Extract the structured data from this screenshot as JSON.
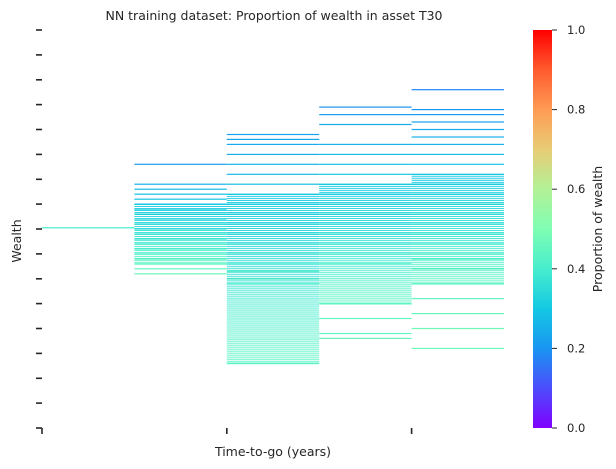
{
  "chart_data": {
    "type": "heatmap",
    "title": "NN training dataset: Proportion of wealth in asset T30",
    "xlabel": "Time-to-go (years)",
    "ylabel": "Wealth",
    "colorbar": {
      "label": "Proportion of wealth",
      "range": [
        0.0,
        1.0
      ],
      "ticks": [
        "0.0",
        "0.2",
        "0.4",
        "0.6",
        "0.8",
        "1.0"
      ],
      "colormap": "rainbow"
    },
    "x_tick_count": 3,
    "y_tick_count": 16,
    "grid": false,
    "columns": [
      {
        "bands": [
          {
            "y": 8.05,
            "v": 0.4
          }
        ]
      },
      {
        "bands": [
          {
            "y": 10.6,
            "v": 0.22
          },
          {
            "y": 9.8,
            "v": 0.25
          },
          {
            "y": 9.6,
            "v": 0.27
          },
          {
            "y": 9.4,
            "v": 0.28
          },
          {
            "y": 9.2,
            "v": 0.29
          },
          {
            "y": 9.0,
            "v": 0.3
          },
          {
            "y": 8.8,
            "v": 0.31
          },
          {
            "y": 8.6,
            "v": 0.32
          },
          {
            "y": 8.4,
            "v": 0.33
          },
          {
            "y": 8.2,
            "v": 0.34
          },
          {
            "y": 8.0,
            "v": 0.35
          },
          {
            "y": 7.8,
            "v": 0.36
          },
          {
            "y": 7.6,
            "v": 0.37
          },
          {
            "y": 7.4,
            "v": 0.38
          },
          {
            "y": 7.2,
            "v": 0.4
          },
          {
            "y": 7.0,
            "v": 0.42
          },
          {
            "y": 6.8,
            "v": 0.43
          },
          {
            "y": 6.6,
            "v": 0.44
          },
          {
            "y": 6.4,
            "v": 0.45
          },
          {
            "y": 6.2,
            "v": 0.46
          }
        ]
      },
      {
        "bands": [
          {
            "y": 11.8,
            "v": 0.22
          },
          {
            "y": 11.6,
            "v": 0.23
          },
          {
            "y": 11.4,
            "v": 0.24
          },
          {
            "y": 11.0,
            "v": 0.25
          },
          {
            "y": 10.6,
            "v": 0.26
          },
          {
            "y": 10.2,
            "v": 0.27
          },
          {
            "y": 9.8,
            "v": 0.28
          },
          {
            "y": 9.4,
            "v": 0.3
          },
          {
            "y": 9.0,
            "v": 0.31
          },
          {
            "y": 8.6,
            "v": 0.32
          },
          {
            "y": 8.2,
            "v": 0.34
          },
          {
            "y": 7.8,
            "v": 0.36
          },
          {
            "y": 7.4,
            "v": 0.38
          },
          {
            "y": 7.0,
            "v": 0.4
          },
          {
            "y": 6.6,
            "v": 0.42
          },
          {
            "y": 6.3,
            "v": 0.43
          },
          {
            "y": 6.0,
            "v": 0.44
          },
          {
            "y": 5.8,
            "v": 0.45
          },
          {
            "y": 2.6,
            "v": 0.42
          }
        ]
      },
      {
        "bands": [
          {
            "y": 12.9,
            "v": 0.2
          },
          {
            "y": 12.6,
            "v": 0.22
          },
          {
            "y": 12.2,
            "v": 0.24
          },
          {
            "y": 11.4,
            "v": 0.26
          },
          {
            "y": 11.0,
            "v": 0.27
          },
          {
            "y": 10.6,
            "v": 0.28
          },
          {
            "y": 10.2,
            "v": 0.29
          },
          {
            "y": 9.8,
            "v": 0.3
          },
          {
            "y": 9.4,
            "v": 0.32
          },
          {
            "y": 9.0,
            "v": 0.33
          },
          {
            "y": 8.6,
            "v": 0.34
          },
          {
            "y": 8.2,
            "v": 0.36
          },
          {
            "y": 7.8,
            "v": 0.38
          },
          {
            "y": 7.4,
            "v": 0.4
          },
          {
            "y": 7.0,
            "v": 0.42
          },
          {
            "y": 6.6,
            "v": 0.43
          },
          {
            "y": 5.0,
            "v": 0.44
          },
          {
            "y": 4.4,
            "v": 0.45
          },
          {
            "y": 3.8,
            "v": 0.45
          },
          {
            "y": 3.6,
            "v": 0.46
          }
        ]
      },
      {
        "bands": [
          {
            "y": 13.6,
            "v": 0.18
          },
          {
            "y": 12.8,
            "v": 0.2
          },
          {
            "y": 12.6,
            "v": 0.21
          },
          {
            "y": 12.3,
            "v": 0.23
          },
          {
            "y": 12.0,
            "v": 0.24
          },
          {
            "y": 11.7,
            "v": 0.25
          },
          {
            "y": 11.4,
            "v": 0.26
          },
          {
            "y": 11.0,
            "v": 0.27
          },
          {
            "y": 10.6,
            "v": 0.29
          },
          {
            "y": 10.2,
            "v": 0.3
          },
          {
            "y": 9.8,
            "v": 0.31
          },
          {
            "y": 9.4,
            "v": 0.33
          },
          {
            "y": 9.0,
            "v": 0.34
          },
          {
            "y": 8.6,
            "v": 0.35
          },
          {
            "y": 8.2,
            "v": 0.37
          },
          {
            "y": 7.8,
            "v": 0.38
          },
          {
            "y": 7.4,
            "v": 0.4
          },
          {
            "y": 7.0,
            "v": 0.41
          },
          {
            "y": 6.8,
            "v": 0.42
          },
          {
            "y": 6.4,
            "v": 0.43
          },
          {
            "y": 5.8,
            "v": 0.44
          },
          {
            "y": 5.2,
            "v": 0.45
          },
          {
            "y": 4.6,
            "v": 0.46
          },
          {
            "y": 4.0,
            "v": 0.47
          },
          {
            "y": 3.2,
            "v": 0.47
          }
        ]
      }
    ]
  }
}
